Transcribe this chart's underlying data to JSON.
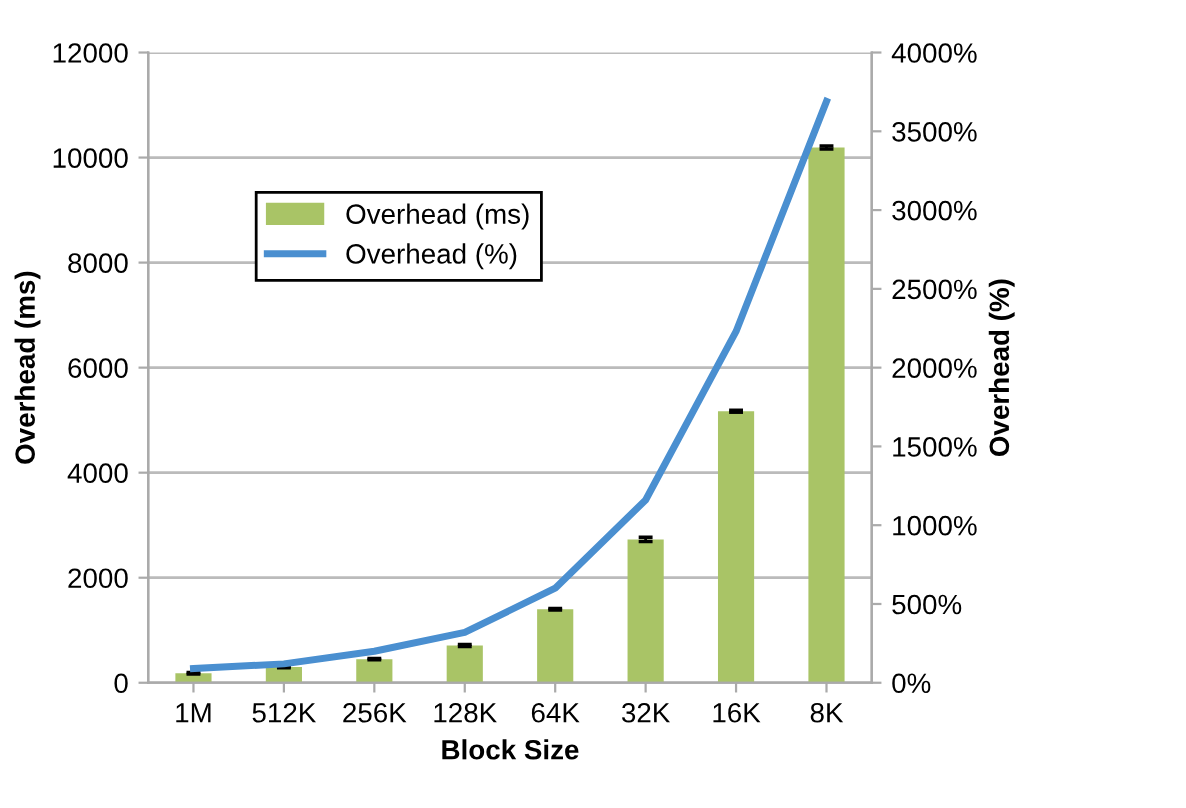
{
  "chart_data": {
    "type": "bar",
    "xlabel": "Block Size",
    "ylabel": "Overhead (ms)",
    "y2label": "Overhead (%)",
    "categories": [
      "1M",
      "512K",
      "256K",
      "128K",
      "64K",
      "32K",
      "16K",
      "8K"
    ],
    "series": [
      {
        "name": "Overhead (ms)",
        "color": "#a9c466",
        "values": [
          180,
          300,
          450,
          710,
          1400,
          2730,
          5170,
          10190
        ],
        "errors": [
          15,
          15,
          15,
          20,
          15,
          40,
          20,
          30
        ]
      },
      {
        "name": "Overhead (%)",
        "type": "line",
        "axis": "y2",
        "color": "#4a8fd0",
        "values": [
          90,
          120,
          200,
          320,
          600,
          1160,
          2230,
          3690
        ]
      }
    ],
    "ylim": [
      0,
      12000
    ],
    "yticks": [
      0,
      2000,
      4000,
      6000,
      8000,
      10000,
      12000
    ],
    "y2lim": [
      0,
      4000
    ],
    "y2ticks": [
      {
        "value": 0,
        "label": "0%"
      },
      {
        "value": 500,
        "label": "500%"
      },
      {
        "value": 1000,
        "label": "1000%"
      },
      {
        "value": 1500,
        "label": "1500%"
      },
      {
        "value": 2000,
        "label": "2000%"
      },
      {
        "value": 2500,
        "label": "2500%"
      },
      {
        "value": 3000,
        "label": "3000%"
      },
      {
        "value": 3500,
        "label": "3500%"
      },
      {
        "value": 4000,
        "label": "4000%"
      }
    ],
    "grid": "y",
    "legend": "top left",
    "marker": "none",
    "line_style": "solid"
  }
}
